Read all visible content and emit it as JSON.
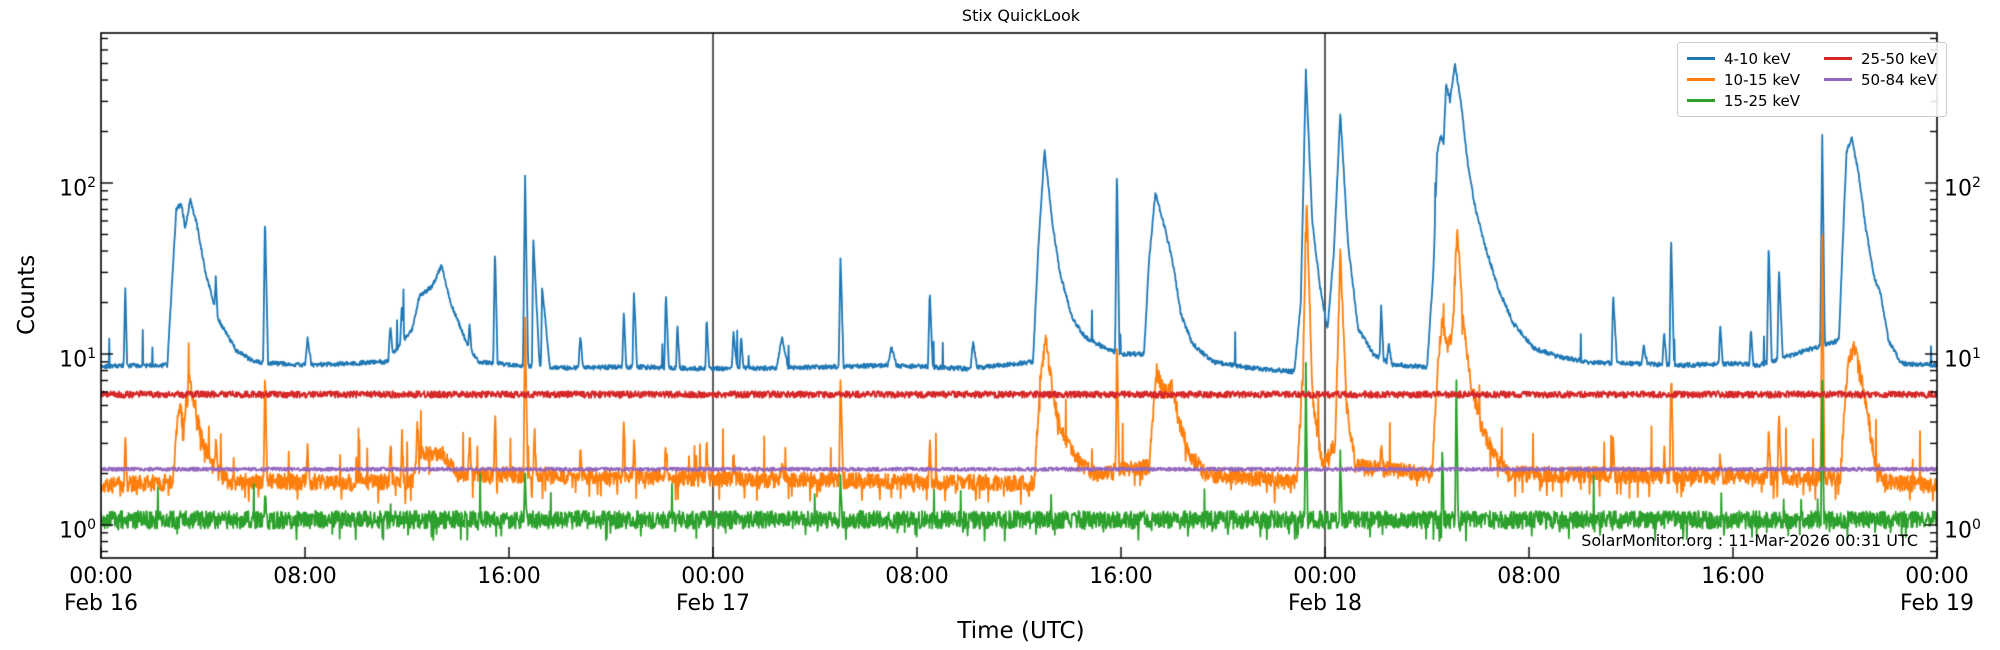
{
  "figure": {
    "title": "Stix QuickLook",
    "watermark": "SolarMonitor.org : 11-Mar-2026 00:31 UTC"
  },
  "chart_data": {
    "type": "line",
    "title": "Stix QuickLook",
    "xlabel": "Time (UTC)",
    "ylabel": "Counts",
    "y_scale": "log",
    "y_range": [
      0.64,
      750
    ],
    "x_unit": "hours since Feb 16 00:00 UTC",
    "x_range_hours": [
      0,
      72
    ],
    "grid": false,
    "day_separators_hours": [
      24,
      48
    ],
    "x_axis": {
      "label": "Time (UTC)",
      "ticks": [
        {
          "hour": 0,
          "time": "00:00",
          "date": "Feb 16"
        },
        {
          "hour": 8,
          "time": "08:00",
          "date": ""
        },
        {
          "hour": 16,
          "time": "16:00",
          "date": ""
        },
        {
          "hour": 24,
          "time": "00:00",
          "date": "Feb 17"
        },
        {
          "hour": 32,
          "time": "08:00",
          "date": ""
        },
        {
          "hour": 40,
          "time": "16:00",
          "date": ""
        },
        {
          "hour": 48,
          "time": "00:00",
          "date": "Feb 18"
        },
        {
          "hour": 56,
          "time": "08:00",
          "date": ""
        },
        {
          "hour": 64,
          "time": "16:00",
          "date": ""
        },
        {
          "hour": 72,
          "time": "00:00",
          "date": "Feb 19"
        }
      ]
    },
    "y_axis": {
      "label": "Counts",
      "tick_base": "10",
      "tick_exponents": [
        0,
        1,
        2
      ]
    },
    "legend": {
      "position": "upper right",
      "entries": [
        {
          "label": "4-10 keV",
          "color": "#1f77b4"
        },
        {
          "label": "10-15 keV",
          "color": "#ff7f0e"
        },
        {
          "label": "15-25 keV",
          "color": "#2ca02c"
        },
        {
          "label": "25-50 keV",
          "color": "#d62728"
        },
        {
          "label": "50-84 keV",
          "color": "#9467bd"
        }
      ]
    },
    "peaks_format": "[t_hours, peak_value, rise_hours, fall_hours]",
    "base_format": "[t_hours, value] envelope keypoints, log-interpolated",
    "series": [
      {
        "name": "4-10 keV",
        "color": "#1f77b4",
        "seed": 101,
        "noise": 0.03,
        "uspike": [
          0.006,
          1.12
        ],
        "line_width": 1.8,
        "base": [
          [
            0,
            8.5
          ],
          [
            2.6,
            8.6
          ],
          [
            2.95,
            70
          ],
          [
            3.15,
            76
          ],
          [
            3.3,
            55
          ],
          [
            3.5,
            80
          ],
          [
            3.75,
            58
          ],
          [
            4.1,
            30
          ],
          [
            4.6,
            16
          ],
          [
            5.3,
            10.5
          ],
          [
            6,
            9
          ],
          [
            8,
            8.6
          ],
          [
            11.2,
            9
          ],
          [
            12.2,
            14
          ],
          [
            12.5,
            22
          ],
          [
            13,
            25
          ],
          [
            13.35,
            33
          ],
          [
            13.7,
            20
          ],
          [
            14.3,
            12
          ],
          [
            14.8,
            9
          ],
          [
            16.2,
            8.6
          ],
          [
            18,
            8.3
          ],
          [
            21,
            8.4
          ],
          [
            24,
            8.2
          ],
          [
            27,
            8.3
          ],
          [
            31,
            8.6
          ],
          [
            34,
            8.2
          ],
          [
            36.55,
            9
          ],
          [
            36.75,
            40
          ],
          [
            37,
            155
          ],
          [
            37.3,
            60
          ],
          [
            37.6,
            30
          ],
          [
            38.1,
            16
          ],
          [
            38.6,
            12.5
          ],
          [
            39.3,
            11
          ],
          [
            40,
            10
          ],
          [
            40.9,
            10
          ],
          [
            41.1,
            35
          ],
          [
            41.35,
            88
          ],
          [
            41.65,
            60
          ],
          [
            41.9,
            42
          ],
          [
            42.1,
            30
          ],
          [
            42.35,
            17
          ],
          [
            42.8,
            11.5
          ],
          [
            43.6,
            9
          ],
          [
            45,
            8.3
          ],
          [
            46.8,
            7.9
          ],
          [
            47.05,
            20
          ],
          [
            47.25,
            450
          ],
          [
            47.5,
            60
          ],
          [
            47.8,
            25
          ],
          [
            48.1,
            14
          ],
          [
            48.35,
            40
          ],
          [
            48.6,
            256
          ],
          [
            48.9,
            45
          ],
          [
            49.3,
            14
          ],
          [
            49.9,
            10
          ],
          [
            50.6,
            8.7
          ],
          [
            52,
            8.4
          ],
          [
            52.25,
            30
          ],
          [
            52.4,
            150
          ],
          [
            52.55,
            190
          ],
          [
            52.65,
            170
          ],
          [
            52.75,
            380
          ],
          [
            52.9,
            300
          ],
          [
            53.1,
            500
          ],
          [
            53.35,
            280
          ],
          [
            53.6,
            130
          ],
          [
            53.9,
            70
          ],
          [
            54.3,
            42
          ],
          [
            54.8,
            24
          ],
          [
            55.4,
            15
          ],
          [
            56.2,
            10.8
          ],
          [
            57.2,
            9.6
          ],
          [
            58.5,
            8.9
          ],
          [
            60,
            8.8
          ],
          [
            62,
            8.6
          ],
          [
            64,
            8.8
          ],
          [
            65,
            8.6
          ],
          [
            68.15,
            12
          ],
          [
            68.45,
            150
          ],
          [
            68.65,
            185
          ],
          [
            68.9,
            120
          ],
          [
            69.2,
            55
          ],
          [
            69.55,
            28
          ],
          [
            69.8,
            22
          ],
          [
            70.1,
            12
          ],
          [
            70.6,
            8.8
          ],
          [
            72,
            8.6
          ]
        ],
        "peaks": [
          [
            0.95,
            25,
            0.06,
            0.08
          ],
          [
            4.5,
            28,
            0.05,
            0.07
          ],
          [
            6.43,
            64,
            0.07,
            0.12
          ],
          [
            8.1,
            12.5,
            0.1,
            0.15
          ],
          [
            11.35,
            15,
            0.08,
            0.1
          ],
          [
            11.8,
            20,
            0.07,
            0.1
          ],
          [
            14.45,
            15,
            0.05,
            0.08
          ],
          [
            15.45,
            43,
            0.07,
            0.1
          ],
          [
            16.63,
            114,
            0.08,
            0.12
          ],
          [
            16.95,
            48,
            0.05,
            0.25
          ],
          [
            17.3,
            25,
            0.05,
            0.3
          ],
          [
            18.8,
            13,
            0.08,
            0.1
          ],
          [
            20.5,
            18,
            0.06,
            0.1
          ],
          [
            20.9,
            23.5,
            0.06,
            0.12
          ],
          [
            22.15,
            23,
            0.06,
            0.12
          ],
          [
            22.6,
            15,
            0.05,
            0.1
          ],
          [
            23.75,
            16.5,
            0.05,
            0.1
          ],
          [
            24.8,
            13.5,
            0.06,
            0.15
          ],
          [
            25.1,
            13,
            0.05,
            0.1
          ],
          [
            26.7,
            12.5,
            0.2,
            0.25
          ],
          [
            29,
            38,
            0.07,
            0.12
          ],
          [
            31,
            11,
            0.15,
            0.2
          ],
          [
            32.5,
            24,
            0.07,
            0.12
          ],
          [
            34.2,
            12,
            0.1,
            0.15
          ],
          [
            39.84,
            128,
            0.07,
            0.1
          ],
          [
            50.2,
            19,
            0.06,
            0.1
          ],
          [
            50.5,
            11.5,
            0.08,
            0.12
          ],
          [
            59.3,
            22.5,
            0.06,
            0.15
          ],
          [
            60.5,
            11,
            0.1,
            0.15
          ],
          [
            61.3,
            13.5,
            0.07,
            0.1
          ],
          [
            61.57,
            50,
            0.06,
            0.12
          ],
          [
            63.5,
            15,
            0.06,
            0.1
          ],
          [
            64.7,
            14,
            0.06,
            0.1
          ],
          [
            65.4,
            45,
            0.07,
            0.12
          ],
          [
            65.8,
            32,
            0.06,
            0.15
          ],
          [
            67.5,
            190,
            0.08,
            0.1
          ]
        ]
      },
      {
        "name": "10-15 keV",
        "color": "#ff7f0e",
        "seed": 202,
        "noise": 0.11,
        "uspike": [
          0.012,
          1.4
        ],
        "dspike": [
          0.05,
          0.82
        ],
        "line_width": 1.8,
        "base": [
          [
            0,
            1.7
          ],
          [
            2.8,
            1.8
          ],
          [
            3.05,
            5
          ],
          [
            3.25,
            4
          ],
          [
            3.45,
            7
          ],
          [
            3.7,
            5
          ],
          [
            4,
            3
          ],
          [
            4.4,
            2.2
          ],
          [
            5,
            1.8
          ],
          [
            12.2,
            1.8
          ],
          [
            12.5,
            2.6
          ],
          [
            13.4,
            2.6
          ],
          [
            14,
            2
          ],
          [
            36.6,
            1.75
          ],
          [
            36.85,
            8
          ],
          [
            37.05,
            12
          ],
          [
            37.4,
            5
          ],
          [
            37.8,
            3.2
          ],
          [
            38.3,
            2.4
          ],
          [
            39,
            2
          ],
          [
            41.1,
            2.2
          ],
          [
            41.4,
            8
          ],
          [
            41.7,
            6
          ],
          [
            42,
            6.5
          ],
          [
            42.3,
            4
          ],
          [
            42.7,
            2.6
          ],
          [
            43.3,
            2
          ],
          [
            46.9,
            1.8
          ],
          [
            47.15,
            10
          ],
          [
            47.28,
            76
          ],
          [
            47.5,
            6
          ],
          [
            47.9,
            2.2
          ],
          [
            48.4,
            3
          ],
          [
            48.6,
            38
          ],
          [
            48.85,
            5
          ],
          [
            49.2,
            2.2
          ],
          [
            52.2,
            2
          ],
          [
            52.45,
            10
          ],
          [
            52.6,
            16
          ],
          [
            52.8,
            11
          ],
          [
            53,
            13
          ],
          [
            53.18,
            58
          ],
          [
            53.4,
            16
          ],
          [
            53.7,
            7
          ],
          [
            54.1,
            4
          ],
          [
            54.6,
            2.6
          ],
          [
            55.2,
            2
          ],
          [
            68.2,
            1.9
          ],
          [
            68.5,
            9
          ],
          [
            68.75,
            11
          ],
          [
            69.05,
            7
          ],
          [
            69.3,
            4.5
          ],
          [
            69.55,
            2.4
          ],
          [
            69.9,
            1.8
          ],
          [
            72,
            1.7
          ]
        ],
        "peaks": [
          [
            0.95,
            3.5,
            0.05,
            0.08
          ],
          [
            4.5,
            3.4,
            0.05,
            0.08
          ],
          [
            6.43,
            8.4,
            0.05,
            0.09
          ],
          [
            8.1,
            2.8,
            0.06,
            0.08
          ],
          [
            11.35,
            3.2,
            0.05,
            0.08
          ],
          [
            11.8,
            3.6,
            0.05,
            0.08
          ],
          [
            12.4,
            4.5,
            0.05,
            0.08
          ],
          [
            14.45,
            3.4,
            0.05,
            0.08
          ],
          [
            15.45,
            4.6,
            0.05,
            0.08
          ],
          [
            16.63,
            19,
            0.06,
            0.1
          ],
          [
            17,
            3.6,
            0.05,
            0.08
          ],
          [
            18.8,
            2.8,
            0.05,
            0.08
          ],
          [
            20.5,
            4.2,
            0.05,
            0.08
          ],
          [
            20.9,
            3.2,
            0.05,
            0.08
          ],
          [
            22.15,
            3.4,
            0.05,
            0.08
          ],
          [
            23.75,
            3,
            0.05,
            0.08
          ],
          [
            24.8,
            2.6,
            0.05,
            0.08
          ],
          [
            26.7,
            2.4,
            0.05,
            0.08
          ],
          [
            29,
            7.5,
            0.06,
            0.1
          ],
          [
            32.5,
            3,
            0.05,
            0.08
          ],
          [
            39.84,
            12,
            0.05,
            0.09
          ],
          [
            50.2,
            3,
            0.05,
            0.08
          ],
          [
            59.3,
            3.2,
            0.05,
            0.08
          ],
          [
            61.3,
            2.8,
            0.05,
            0.08
          ],
          [
            61.57,
            7.5,
            0.05,
            0.1
          ],
          [
            63.5,
            2.6,
            0.05,
            0.08
          ],
          [
            65.4,
            3.4,
            0.05,
            0.08
          ],
          [
            65.8,
            5,
            0.05,
            0.1
          ],
          [
            67.5,
            48,
            0.06,
            0.09
          ]
        ]
      },
      {
        "name": "15-25 keV",
        "color": "#2ca02c",
        "seed": 303,
        "noise": 0.12,
        "uspike": [
          0.004,
          1.3
        ],
        "dspike": [
          0.03,
          0.85
        ],
        "line_width": 1.8,
        "base": [
          [
            0,
            1.08
          ],
          [
            72,
            1.08
          ]
        ],
        "peaks": [
          [
            6.43,
            1.7,
            0.04,
            0.06
          ],
          [
            16.63,
            2.2,
            0.04,
            0.06
          ],
          [
            29,
            1.8,
            0.04,
            0.06
          ],
          [
            47.25,
            8.5,
            0.05,
            0.07
          ],
          [
            48.6,
            2.6,
            0.04,
            0.06
          ],
          [
            52.6,
            3.3,
            0.04,
            0.06
          ],
          [
            53.15,
            7.4,
            0.05,
            0.07
          ],
          [
            67.5,
            7.5,
            0.05,
            0.07
          ]
        ]
      },
      {
        "name": "25-50 keV",
        "color": "#d62728",
        "seed": 404,
        "noise": 0.045,
        "line_width": 1.8,
        "base": [
          [
            0,
            5.8
          ],
          [
            72,
            5.8
          ]
        ],
        "peaks": []
      },
      {
        "name": "50-84 keV",
        "color": "#9467bd",
        "seed": 505,
        "noise": 0.024,
        "line_width": 1.8,
        "base": [
          [
            0,
            2.12
          ],
          [
            72,
            2.12
          ]
        ],
        "peaks": []
      }
    ]
  }
}
